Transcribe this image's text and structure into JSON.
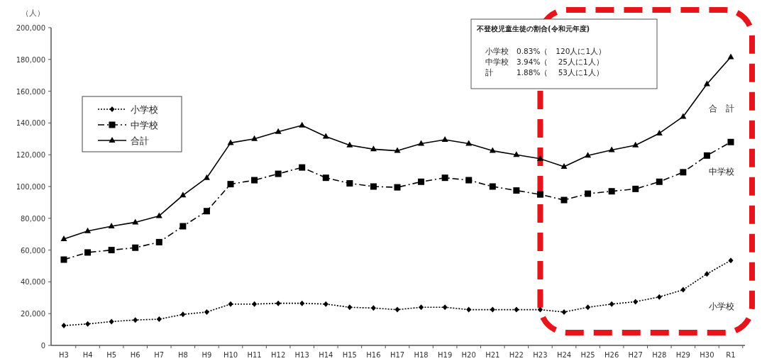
{
  "chart_data": {
    "type": "line",
    "ylabel": "（人）",
    "categories": [
      "H3",
      "H4",
      "H5",
      "H6",
      "H7",
      "H8",
      "H9",
      "H10",
      "H11",
      "H12",
      "H13",
      "H14",
      "H15",
      "H16",
      "H17",
      "H18",
      "H19",
      "H20",
      "H21",
      "H22",
      "H23",
      "H24",
      "H25",
      "H26",
      "H27",
      "H28",
      "H29",
      "H30",
      "R1"
    ],
    "ylim": [
      0,
      200000
    ],
    "yticks": [
      0,
      {
        "value": 20000,
        "label": "20,000"
      },
      {
        "value": 40000,
        "label": "40,000"
      },
      {
        "value": 60000,
        "label": "60,000"
      },
      {
        "value": 80000,
        "label": "80,000"
      },
      {
        "value": 100000,
        "label": "100,000"
      },
      {
        "value": 120000,
        "label": "120,000"
      },
      {
        "value": 140000,
        "label": "140,000"
      },
      {
        "value": 160000,
        "label": "160,000"
      },
      {
        "value": 180000,
        "label": "180,000"
      },
      {
        "value": 200000,
        "label": "200,000"
      }
    ],
    "grid": false,
    "legend": "top left",
    "series": [
      {
        "name": "小学校",
        "color": "#000000",
        "marker": "diamond",
        "line_style": "dotted",
        "values": [
          12500,
          13500,
          15000,
          16000,
          16500,
          19500,
          21000,
          26000,
          26000,
          26500,
          26500,
          26000,
          24000,
          23500,
          22500,
          24000,
          24000,
          22500,
          22500,
          22500,
          22500,
          21000,
          24000,
          26000,
          27500,
          30500,
          35000,
          45000,
          53500
        ]
      },
      {
        "name": "中学校",
        "color": "#000000",
        "marker": "square",
        "line_style": "dashed",
        "values": [
          54000,
          58500,
          60000,
          61500,
          65000,
          75000,
          84500,
          101500,
          104000,
          108000,
          112000,
          105500,
          102000,
          100000,
          99500,
          103000,
          105500,
          104000,
          100000,
          97500,
          95000,
          91500,
          95500,
          97000,
          98500,
          103000,
          109000,
          119500,
          128000
        ]
      },
      {
        "name": "合計",
        "color": "#000000",
        "marker": "triangle",
        "line_style": "solid",
        "values": [
          67000,
          72000,
          75000,
          77500,
          81500,
          94500,
          105500,
          127500,
          130000,
          134500,
          138500,
          131500,
          126000,
          123500,
          122500,
          127000,
          129500,
          127000,
          122500,
          120000,
          117500,
          112500,
          119500,
          123000,
          126000,
          133500,
          144000,
          164500,
          181500
        ]
      }
    ],
    "annotations": [
      "不登校児童生徒の割合(令和元年度)",
      "小学校　0.83%（　120人に1人）",
      "中学校　3.94%（　 25人に1人）",
      "計　　　1.88%（　 53人に1人）",
      "合　計",
      "中学校",
      "小学校"
    ]
  }
}
